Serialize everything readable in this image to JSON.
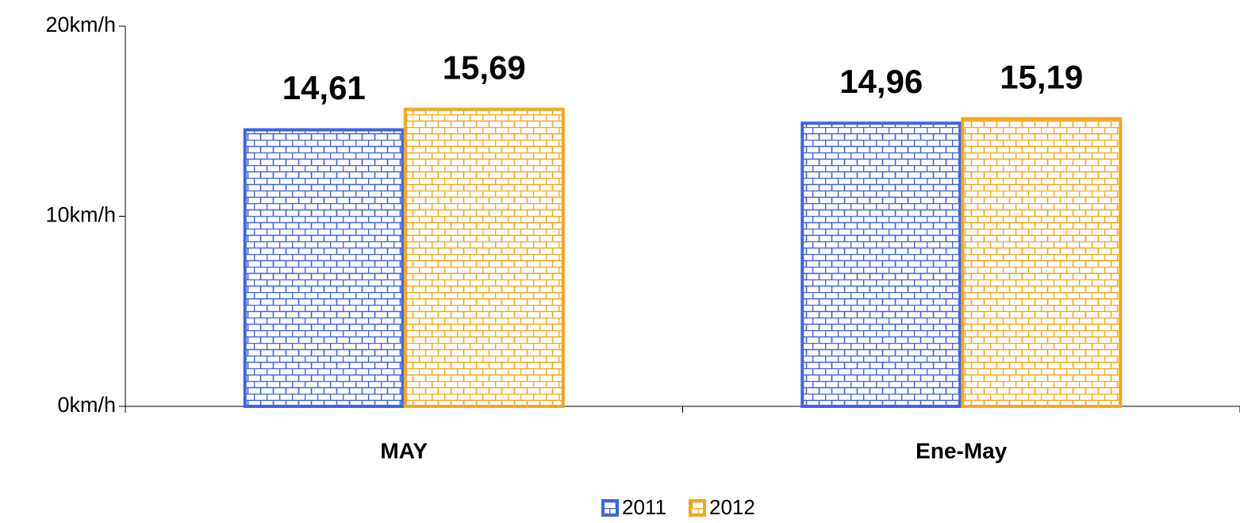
{
  "chart_data": {
    "type": "bar",
    "categories": [
      "MAY",
      "Ene-May"
    ],
    "series": [
      {
        "name": "2011",
        "color": "#3d63e6",
        "values": [
          14.61,
          14.96
        ],
        "value_labels": [
          "14,61",
          "14,96"
        ]
      },
      {
        "name": "2012",
        "color": "#f7a51b",
        "values": [
          15.69,
          15.19
        ],
        "value_labels": [
          "15,69",
          "15,19"
        ]
      }
    ],
    "ylim": [
      0,
      20
    ],
    "yticks": [
      {
        "value": 0,
        "label": "0km/h"
      },
      {
        "value": 10,
        "label": "10km/h"
      },
      {
        "value": 20,
        "label": "20km/h"
      }
    ],
    "legend": "bottom"
  }
}
